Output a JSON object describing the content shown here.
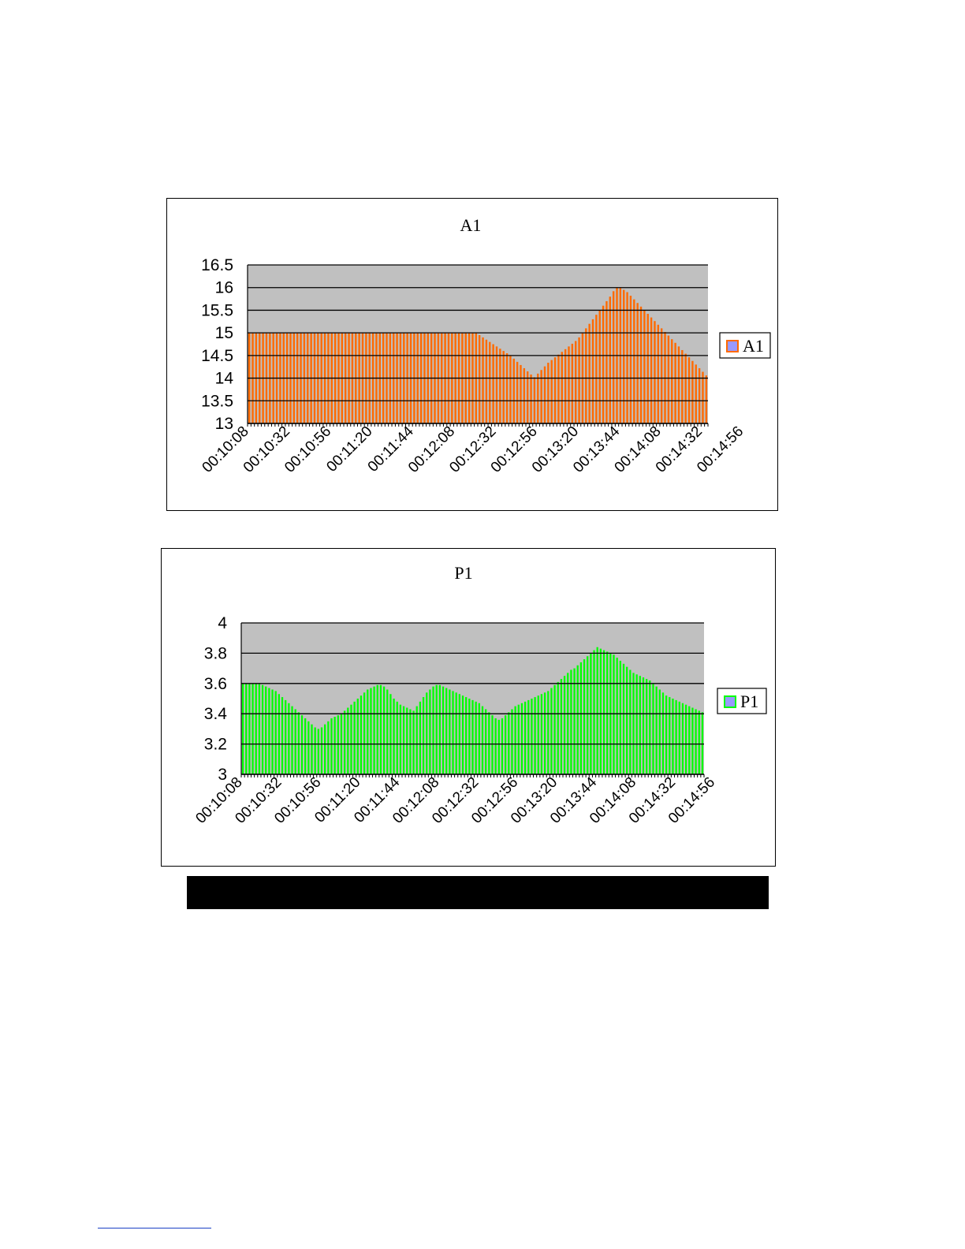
{
  "chart_data": [
    {
      "id": "chart-a1",
      "type": "bar",
      "title": "A1",
      "xlabel": "",
      "ylabel": "",
      "ylim": [
        13,
        16.5
      ],
      "yticks": [
        "16.5",
        "16",
        "15.5",
        "15",
        "14.5",
        "14",
        "13.5",
        "13"
      ],
      "xticks": [
        "00:10:08",
        "00:10:32",
        "00:10:56",
        "00:11:20",
        "00:11:44",
        "00:12:08",
        "00:12:32",
        "00:12:56",
        "00:13:20",
        "00:13:44",
        "00:14:08",
        "00:14:32",
        "00:14:56"
      ],
      "x_step_seconds": 2,
      "grid": true,
      "plot_background": "#c0c0c0",
      "legend": "right",
      "series": [
        {
          "name": "A1",
          "color": "#ff6a00",
          "legend_swatch_fill": "#9999ff",
          "legend_swatch_border": "#ff6a00",
          "values": [
            15,
            15,
            15,
            15,
            15,
            15,
            15,
            15,
            15,
            15,
            15,
            15,
            15,
            15,
            15,
            15,
            15,
            15,
            15,
            15,
            15,
            15,
            15,
            15,
            15,
            15,
            15,
            15,
            15,
            15,
            15,
            15,
            15,
            15,
            15,
            15,
            15,
            15,
            15,
            15,
            15,
            15,
            15,
            15,
            15,
            15,
            15,
            15,
            15,
            15,
            15,
            15,
            15,
            15,
            15,
            15,
            15,
            15,
            15,
            15,
            15,
            15,
            15,
            15,
            15,
            15,
            15,
            14.95,
            14.9,
            14.85,
            14.8,
            14.75,
            14.7,
            14.65,
            14.6,
            14.55,
            14.5,
            14.43,
            14.36,
            14.29,
            14.22,
            14.15,
            14.08,
            14.02,
            14.1,
            14.18,
            14.26,
            14.34,
            14.4,
            14.46,
            14.52,
            14.58,
            14.64,
            14.7,
            14.76,
            14.82,
            14.9,
            15,
            15.1,
            15.2,
            15.3,
            15.4,
            15.5,
            15.6,
            15.7,
            15.8,
            15.92,
            16,
            16,
            15.95,
            15.9,
            15.82,
            15.74,
            15.66,
            15.58,
            15.5,
            15.42,
            15.34,
            15.26,
            15.18,
            15.1,
            15.02,
            14.94,
            14.86,
            14.78,
            14.7,
            14.62,
            14.54,
            14.46,
            14.38,
            14.3,
            14.22,
            14.14,
            14.06
          ]
        }
      ]
    },
    {
      "id": "chart-p1",
      "type": "bar",
      "title": "P1",
      "xlabel": "",
      "ylabel": "",
      "ylim": [
        3,
        4
      ],
      "yticks": [
        "4",
        "3.8",
        "3.6",
        "3.4",
        "3.2",
        "3"
      ],
      "xticks": [
        "00:10:08",
        "00:10:32",
        "00:10:56",
        "00:11:20",
        "00:11:44",
        "00:12:08",
        "00:12:32",
        "00:12:56",
        "00:13:20",
        "00:13:44",
        "00:14:08",
        "00:14:32",
        "00:14:56"
      ],
      "x_step_seconds": 2,
      "grid": true,
      "plot_background": "#c0c0c0",
      "legend": "right",
      "series": [
        {
          "name": "P1",
          "color": "#00ff00",
          "legend_swatch_fill": "#9999ff",
          "legend_swatch_border": "#00ff00",
          "values": [
            3.6,
            3.6,
            3.6,
            3.6,
            3.6,
            3.6,
            3.59,
            3.58,
            3.57,
            3.56,
            3.55,
            3.53,
            3.51,
            3.49,
            3.47,
            3.45,
            3.43,
            3.41,
            3.39,
            3.37,
            3.35,
            3.33,
            3.31,
            3.3,
            3.31,
            3.33,
            3.35,
            3.37,
            3.38,
            3.39,
            3.4,
            3.42,
            3.44,
            3.46,
            3.48,
            3.5,
            3.52,
            3.54,
            3.56,
            3.57,
            3.58,
            3.59,
            3.59,
            3.58,
            3.56,
            3.53,
            3.5,
            3.48,
            3.46,
            3.45,
            3.44,
            3.43,
            3.42,
            3.45,
            3.48,
            3.51,
            3.54,
            3.56,
            3.58,
            3.59,
            3.59,
            3.58,
            3.57,
            3.56,
            3.55,
            3.54,
            3.53,
            3.52,
            3.51,
            3.5,
            3.49,
            3.48,
            3.47,
            3.45,
            3.43,
            3.41,
            3.39,
            3.37,
            3.36,
            3.37,
            3.39,
            3.41,
            3.43,
            3.45,
            3.46,
            3.47,
            3.48,
            3.49,
            3.5,
            3.51,
            3.52,
            3.53,
            3.54,
            3.55,
            3.57,
            3.59,
            3.61,
            3.63,
            3.65,
            3.67,
            3.69,
            3.7,
            3.72,
            3.74,
            3.76,
            3.78,
            3.8,
            3.82,
            3.84,
            3.83,
            3.82,
            3.81,
            3.8,
            3.79,
            3.77,
            3.75,
            3.73,
            3.71,
            3.69,
            3.67,
            3.66,
            3.65,
            3.64,
            3.63,
            3.62,
            3.6,
            3.58,
            3.56,
            3.54,
            3.52,
            3.51,
            3.5,
            3.49,
            3.48,
            3.47,
            3.46,
            3.45,
            3.44,
            3.43,
            3.42,
            3.41
          ]
        }
      ]
    }
  ]
}
